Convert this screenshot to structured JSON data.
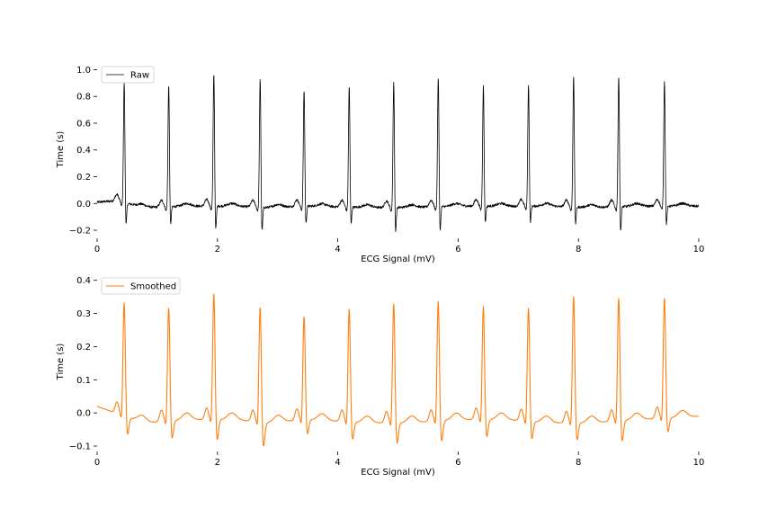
{
  "chart_data": [
    {
      "type": "line",
      "title": "",
      "xlabel": "ECG Signal (mV)",
      "ylabel": "Time (s)",
      "xlim": [
        0,
        10
      ],
      "ylim": [
        -0.22,
        1.03
      ],
      "xticks": [
        0,
        2,
        4,
        6,
        8,
        10
      ],
      "xtick_labels": [
        "0",
        "2",
        "4",
        "6",
        "8",
        "10"
      ],
      "yticks": [
        -0.2,
        0.0,
        0.2,
        0.4,
        0.6,
        0.8,
        1.0
      ],
      "ytick_labels": [
        "−0.2",
        "0.0",
        "0.2",
        "0.4",
        "0.6",
        "0.8",
        "1.0"
      ],
      "legend": {
        "position": "top-left",
        "entries": [
          "Raw"
        ]
      },
      "grid": false,
      "series": [
        {
          "name": "Raw",
          "color": "#000000",
          "beat_times": [
            0.45,
            1.19,
            1.94,
            2.71,
            3.44,
            4.19,
            4.93,
            5.67,
            6.42,
            7.17,
            7.92,
            8.67,
            9.43
          ],
          "r_peaks": [
            0.91,
            0.92,
            1.0,
            0.97,
            0.88,
            0.91,
            0.95,
            0.98,
            0.91,
            0.92,
            0.99,
            0.99,
            0.95
          ],
          "s_troughs": [
            -0.19,
            -0.16,
            -0.2,
            -0.21,
            -0.16,
            -0.15,
            -0.21,
            -0.21,
            -0.15,
            -0.15,
            -0.16,
            -0.22,
            -0.17
          ],
          "baseline": [
            [
              0,
              0.01
            ],
            [
              0.3,
              0.02
            ],
            [
              0.8,
              -0.03
            ],
            [
              1.5,
              -0.02
            ],
            [
              2.3,
              -0.02
            ],
            [
              2.8,
              -0.03
            ],
            [
              3.5,
              -0.02
            ],
            [
              4.5,
              -0.03
            ],
            [
              5.2,
              -0.03
            ],
            [
              6.0,
              -0.02
            ],
            [
              6.8,
              -0.02
            ],
            [
              7.5,
              -0.02
            ],
            [
              8.2,
              -0.03
            ],
            [
              9.0,
              -0.02
            ],
            [
              10,
              -0.02
            ]
          ]
        }
      ]
    },
    {
      "type": "line",
      "title": "",
      "xlabel": "ECG Signal (mV)",
      "ylabel": "Time (s)",
      "xlim": [
        0,
        10
      ],
      "ylim": [
        -0.1,
        0.41
      ],
      "xticks": [
        0,
        2,
        4,
        6,
        8,
        10
      ],
      "xtick_labels": [
        "0",
        "2",
        "4",
        "6",
        "8",
        "10"
      ],
      "yticks": [
        -0.1,
        0.0,
        0.1,
        0.2,
        0.3,
        0.4
      ],
      "ytick_labels": [
        "−0.1",
        "0.0",
        "0.1",
        "0.2",
        "0.3",
        "0.4"
      ],
      "legend": {
        "position": "top-left",
        "entries": [
          "Smoothed"
        ]
      },
      "grid": false,
      "series": [
        {
          "name": "Smoothed",
          "color": "#ff7f0e",
          "beat_times": [
            0.45,
            1.19,
            1.94,
            2.71,
            3.44,
            4.19,
            4.93,
            5.67,
            6.42,
            7.17,
            7.92,
            8.67,
            9.43
          ],
          "r_peaks": [
            0.35,
            0.35,
            0.39,
            0.36,
            0.32,
            0.35,
            0.37,
            0.37,
            0.35,
            0.35,
            0.39,
            0.38,
            0.37
          ],
          "s_troughs": [
            -0.06,
            -0.06,
            -0.07,
            -0.08,
            -0.05,
            -0.06,
            -0.07,
            -0.07,
            -0.06,
            -0.06,
            -0.06,
            -0.07,
            -0.05
          ],
          "baseline": [
            [
              0,
              0.02
            ],
            [
              0.3,
              0.0
            ],
            [
              0.8,
              -0.03
            ],
            [
              1.5,
              -0.02
            ],
            [
              2.3,
              -0.02
            ],
            [
              2.8,
              -0.03
            ],
            [
              3.5,
              -0.02
            ],
            [
              4.5,
              -0.03
            ],
            [
              5.2,
              -0.03
            ],
            [
              6.0,
              -0.02
            ],
            [
              6.8,
              -0.02
            ],
            [
              7.5,
              -0.03
            ],
            [
              8.2,
              -0.03
            ],
            [
              9.0,
              -0.02
            ],
            [
              10,
              -0.01
            ]
          ]
        }
      ]
    }
  ]
}
